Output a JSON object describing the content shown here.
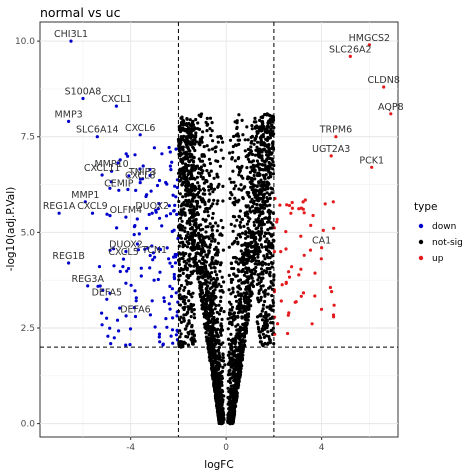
{
  "chart_data": {
    "type": "scatter",
    "title": "normal vs uc",
    "xlabel": "logFC",
    "ylabel": "-log10(adj.P.Val)",
    "xlim": [
      -7.8,
      7.2
    ],
    "ylim": [
      -0.35,
      10.5
    ],
    "x_ticks": [
      -4,
      0,
      4
    ],
    "x_tick_labels": [
      "-4",
      "0",
      "4"
    ],
    "y_ticks": [
      0,
      2.5,
      5,
      7.5,
      10
    ],
    "y_tick_labels": [
      "0.0",
      "2.5",
      "5.0",
      "7.5",
      "10.0"
    ],
    "grid": true,
    "thresholds": {
      "logFC": 2,
      "neg_logFC": -2,
      "neglog10p": 2
    },
    "legend": {
      "title": "type",
      "position": "right",
      "entries": [
        {
          "name": "down",
          "color": "#0000CD"
        },
        {
          "name": "not-sig",
          "color": "#000000"
        },
        {
          "name": "up",
          "color": "#E41A1C"
        }
      ]
    },
    "labeled_points": [
      {
        "gene": "CHI3L1",
        "x": -6.5,
        "y": 10.0,
        "type": "down"
      },
      {
        "gene": "HMGCS2",
        "x": 6.0,
        "y": 9.9,
        "type": "up"
      },
      {
        "gene": "SLC26A2",
        "x": 5.2,
        "y": 9.6,
        "type": "up"
      },
      {
        "gene": "CLDN8",
        "x": 6.6,
        "y": 8.8,
        "type": "up"
      },
      {
        "gene": "AQP8",
        "x": 6.9,
        "y": 8.1,
        "type": "up"
      },
      {
        "gene": "S100A8",
        "x": -6.0,
        "y": 8.5,
        "type": "down"
      },
      {
        "gene": "MMP3",
        "x": -6.6,
        "y": 7.9,
        "type": "down"
      },
      {
        "gene": "CXCL1",
        "x": -4.6,
        "y": 8.3,
        "type": "down"
      },
      {
        "gene": "CXCL6",
        "x": -3.6,
        "y": 7.55,
        "type": "down"
      },
      {
        "gene": "SLC6A14",
        "x": -5.4,
        "y": 7.5,
        "type": "down"
      },
      {
        "gene": "TRPM6",
        "x": 4.6,
        "y": 7.5,
        "type": "up"
      },
      {
        "gene": "UGT2A3",
        "x": 4.4,
        "y": 7.0,
        "type": "up"
      },
      {
        "gene": "TNIP3",
        "x": -3.5,
        "y": 6.4,
        "type": "down"
      },
      {
        "gene": "MMP10",
        "x": -4.8,
        "y": 6.6,
        "type": "down"
      },
      {
        "gene": "PCK1",
        "x": 6.1,
        "y": 6.7,
        "type": "up"
      },
      {
        "gene": "CXCL11",
        "x": -5.2,
        "y": 6.5,
        "type": "down"
      },
      {
        "gene": "CXCL8",
        "x": -3.6,
        "y": 6.3,
        "type": "down"
      },
      {
        "gene": "CEMIP",
        "x": -4.5,
        "y": 6.1,
        "type": "down"
      },
      {
        "gene": "MMP1",
        "x": -5.9,
        "y": 5.8,
        "type": "down"
      },
      {
        "gene": "CXCL9",
        "x": -5.6,
        "y": 5.5,
        "type": "down"
      },
      {
        "gene": "DUOX2",
        "x": -3.1,
        "y": 5.5,
        "type": "down"
      },
      {
        "gene": "OLFM4",
        "x": -4.2,
        "y": 5.4,
        "type": "down"
      },
      {
        "gene": "REG1A",
        "x": -7.0,
        "y": 5.5,
        "type": "down"
      },
      {
        "gene": "DUOX2",
        "x": -4.2,
        "y": 4.5,
        "type": "down"
      },
      {
        "gene": "CA1",
        "x": 4.0,
        "y": 4.6,
        "type": "up"
      },
      {
        "gene": "TCN1",
        "x": -3.0,
        "y": 4.35,
        "type": "down"
      },
      {
        "gene": "REG1B",
        "x": -6.6,
        "y": 4.2,
        "type": "down"
      },
      {
        "gene": "CXCL5",
        "x": -4.3,
        "y": 4.3,
        "type": "down"
      },
      {
        "gene": "REG3A",
        "x": -5.8,
        "y": 3.6,
        "type": "down"
      },
      {
        "gene": "DEFA5",
        "x": -5.0,
        "y": 3.25,
        "type": "down"
      },
      {
        "gene": "DEFA6",
        "x": -3.8,
        "y": 2.8,
        "type": "down"
      }
    ]
  }
}
